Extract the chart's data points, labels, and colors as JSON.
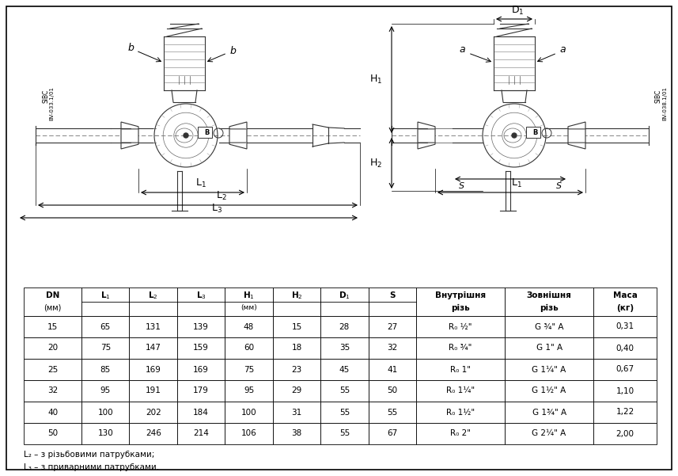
{
  "bg_color": "#ffffff",
  "table_data": [
    [
      "15",
      "65",
      "131",
      "139",
      "48",
      "15",
      "28",
      "27",
      "R₀ ½\"",
      "G ¾\" A",
      "0,31"
    ],
    [
      "20",
      "75",
      "147",
      "159",
      "60",
      "18",
      "35",
      "32",
      "R₀ ¾\"",
      "G 1\" A",
      "0,40"
    ],
    [
      "25",
      "85",
      "169",
      "169",
      "75",
      "23",
      "45",
      "41",
      "R₀ 1\"",
      "G 1¼\" A",
      "0,67"
    ],
    [
      "32",
      "95",
      "191",
      "179",
      "95",
      "29",
      "55",
      "50",
      "R₀ 1¼\"",
      "G 1½\" A",
      "1,10"
    ],
    [
      "40",
      "100",
      "202",
      "184",
      "100",
      "31",
      "55",
      "55",
      "R₀ 1½\"",
      "G 1¾\" A",
      "1,22"
    ],
    [
      "50",
      "130",
      "246",
      "214",
      "106",
      "38",
      "55",
      "67",
      "R₀ 2\"",
      "G 2¼\" A",
      "2,00"
    ]
  ],
  "footnote1": "L₂ – з різьбовими патрубками;",
  "footnote2": "L₃ – з приварними патрубками.",
  "col_widths": [
    0.75,
    0.62,
    0.62,
    0.62,
    0.62,
    0.62,
    0.62,
    0.62,
    1.15,
    1.15,
    0.82
  ],
  "sibc_left": "SIBC\nBV-033.1/01",
  "sibc_right": "SIBC\nBV-038.1/01"
}
